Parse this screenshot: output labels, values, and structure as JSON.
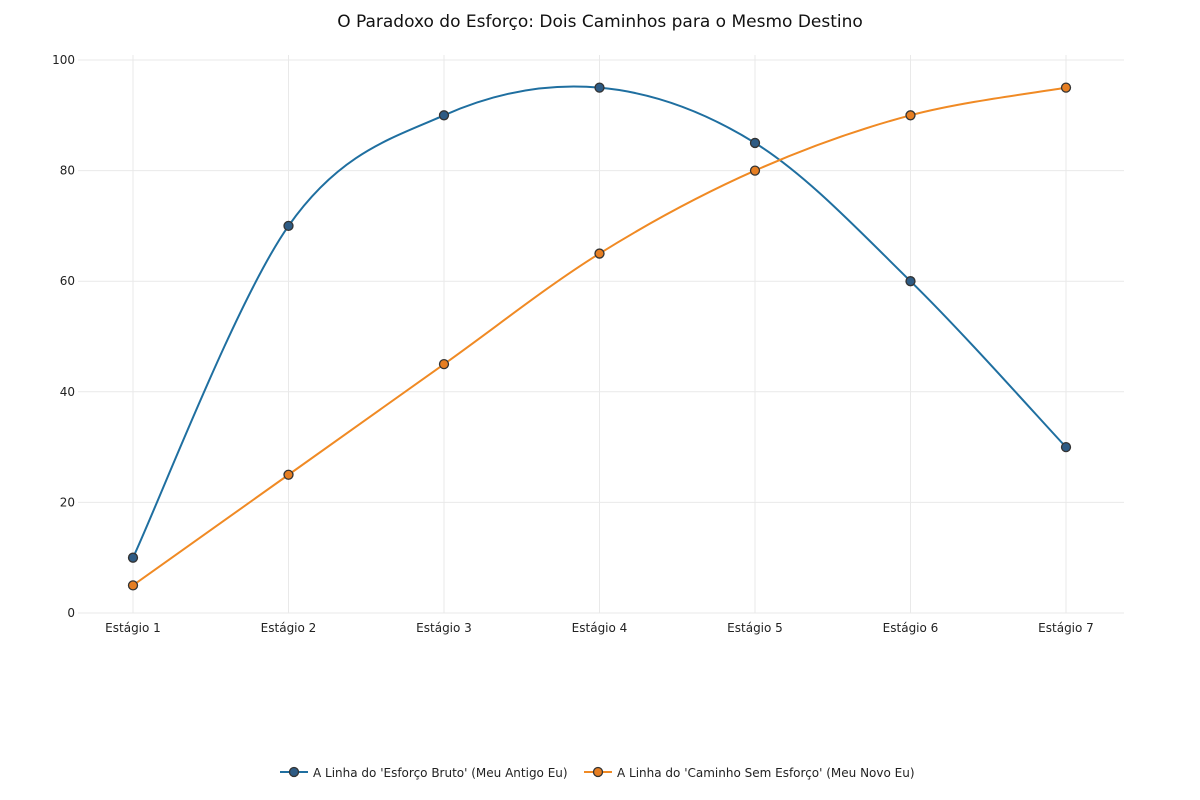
{
  "chart_data": {
    "type": "line",
    "title": "O Paradoxo do Esforço: Dois Caminhos para o Mesmo Destino",
    "categories": [
      "Estágio 1",
      "Estágio 2",
      "Estágio 3",
      "Estágio 4",
      "Estágio 5",
      "Estágio 6",
      "Estágio 7"
    ],
    "ylim": [
      0,
      100
    ],
    "yticks": [
      0,
      20,
      40,
      60,
      80,
      100
    ],
    "grid": true,
    "legend_position": "bottom-center",
    "series": [
      {
        "name": "A Linha do 'Esforço Bruto' (Meu Antigo Eu)",
        "values": [
          10,
          70,
          90,
          95,
          85,
          60,
          30
        ],
        "color": "#1f6fa0",
        "marker_fill": "#2e5b84"
      },
      {
        "name": "A Linha do 'Caminho Sem Esforço' (Meu Novo Eu)",
        "values": [
          5,
          25,
          45,
          65,
          80,
          90,
          95
        ],
        "color": "#f08a24",
        "marker_fill": "#e67e22"
      }
    ]
  }
}
